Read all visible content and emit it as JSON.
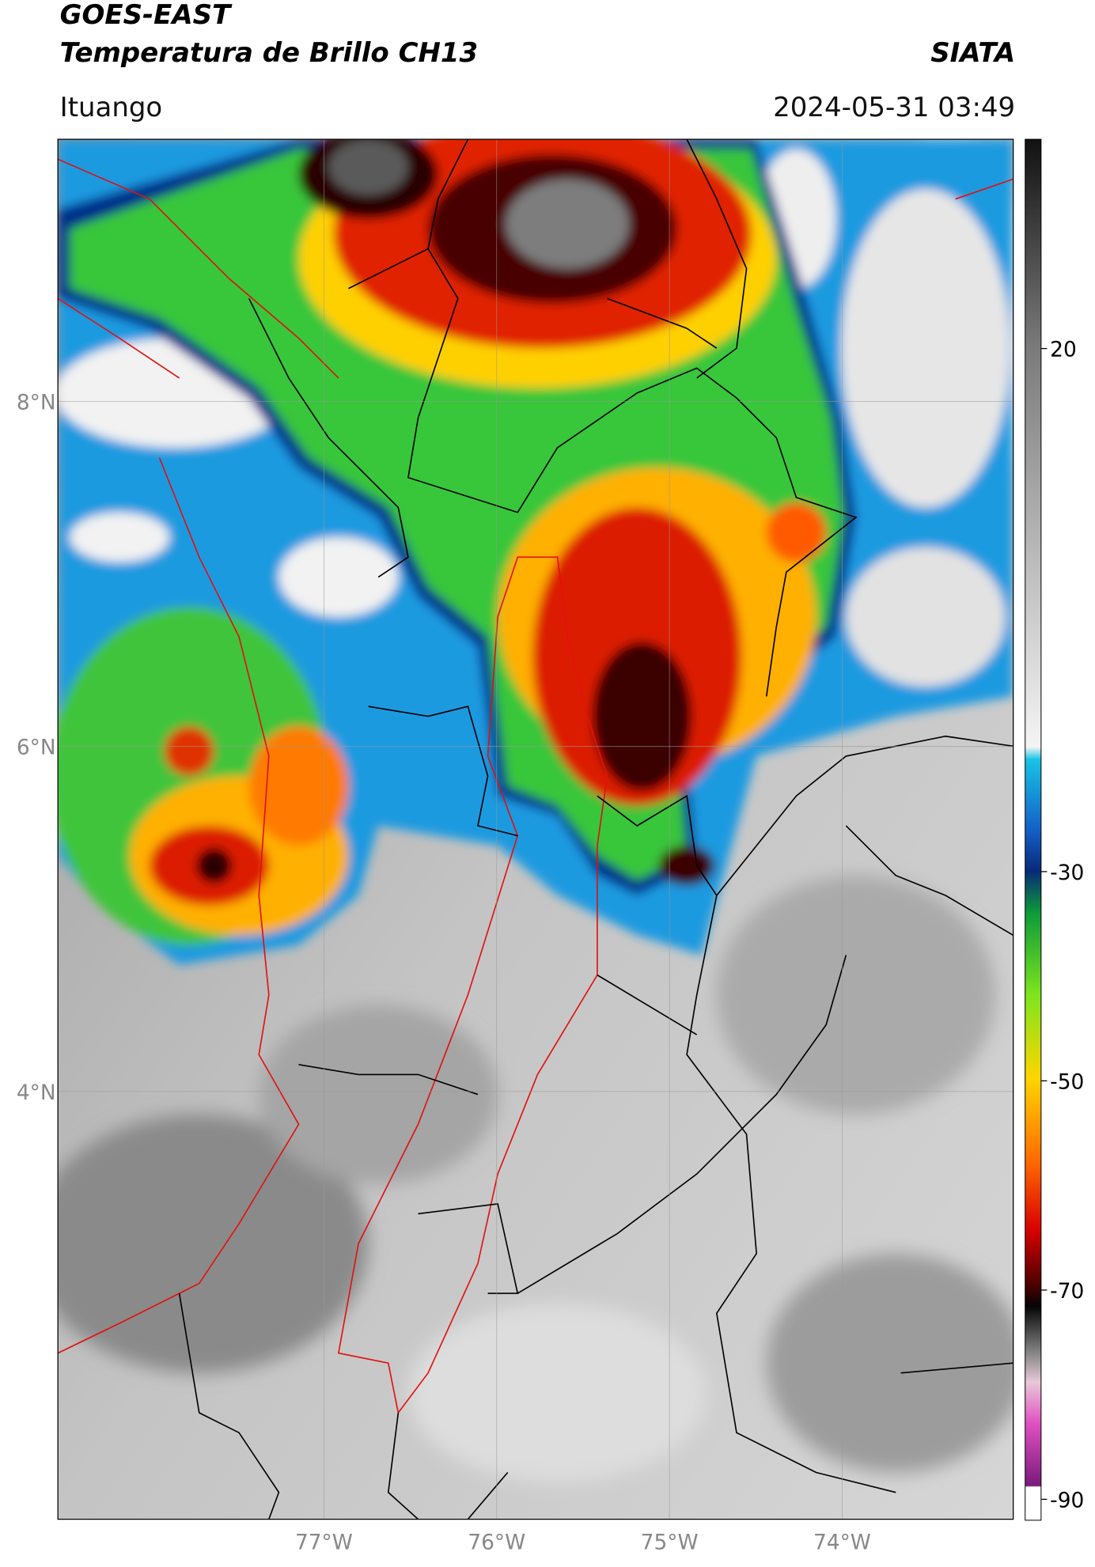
{
  "header": {
    "satellite": "GOES-EAST",
    "product": "Temperatura de Brillo CH13",
    "agency": "SIATA",
    "location": "Ituango",
    "timestamp": "2024-05-31 03:49"
  },
  "map": {
    "lonlim": [
      -78.54,
      -73.01
    ],
    "latlim": [
      1.52,
      9.52
    ],
    "grid": true,
    "lonticks": [
      {
        "value": -77,
        "label": "77°W"
      },
      {
        "value": -76,
        "label": "76°W"
      },
      {
        "value": -75,
        "label": "75°W"
      },
      {
        "value": -74,
        "label": "74°W"
      }
    ],
    "latticks": [
      {
        "value": 8,
        "label": "8°N"
      },
      {
        "value": 6,
        "label": "6°N"
      },
      {
        "value": 4,
        "label": "4°N"
      }
    ]
  },
  "colorbar": {
    "lim": [
      -92,
      40
    ],
    "ticks": [
      20,
      -30,
      -50,
      -70,
      -90
    ]
  }
}
